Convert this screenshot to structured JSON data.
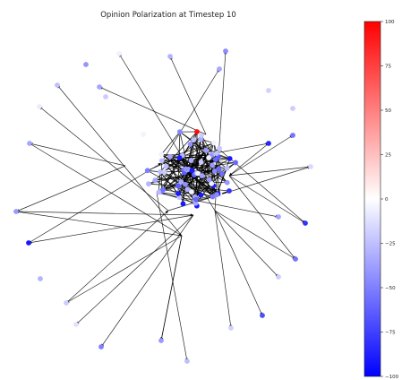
{
  "chart_data": {
    "type": "scatter",
    "title": "Opinion Polarization at Timestep 10",
    "colormap": "bwr",
    "colorbar": {
      "vmin": -100,
      "vmax": 100,
      "ticks": [
        100,
        75,
        50,
        25,
        0,
        -25,
        -50,
        -75,
        -100
      ],
      "tick_labels": [
        "100",
        "75",
        "50",
        "25",
        "0",
        "−25",
        "−50",
        "−75",
        "−100"
      ]
    },
    "axes_visible": false,
    "grid": false
  }
}
